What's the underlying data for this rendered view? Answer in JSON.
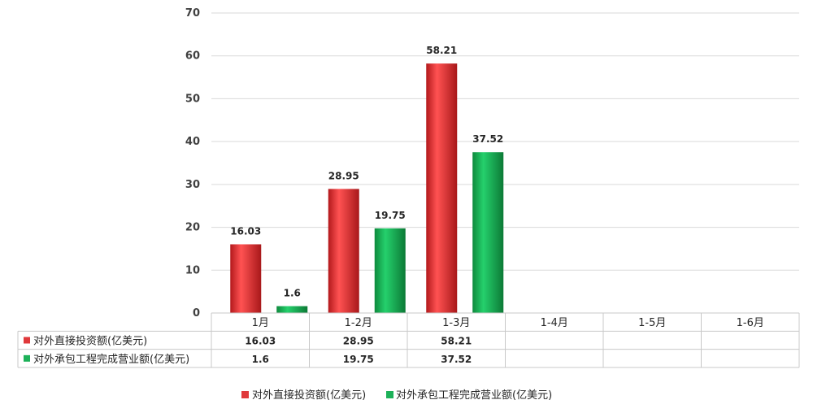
{
  "chart_data": {
    "type": "bar",
    "categories": [
      "1月",
      "1-2月",
      "1-3月",
      "1-4月",
      "1-5月",
      "1-6月"
    ],
    "series": [
      {
        "name": "对外直接投资额(亿美元)",
        "values": [
          16.03,
          28.95,
          58.21,
          null,
          null,
          null
        ],
        "color": "#e0393b"
      },
      {
        "name": "对外承包工程完成营业额(亿美元)",
        "values": [
          1.6,
          19.75,
          37.52,
          null,
          null,
          null
        ],
        "color": "#1db159"
      }
    ],
    "ylim": [
      0,
      70
    ],
    "yticks": [
      0,
      10,
      20,
      30,
      40,
      50,
      60,
      70
    ],
    "grid": true,
    "legend": "bottom",
    "data_table": true
  }
}
